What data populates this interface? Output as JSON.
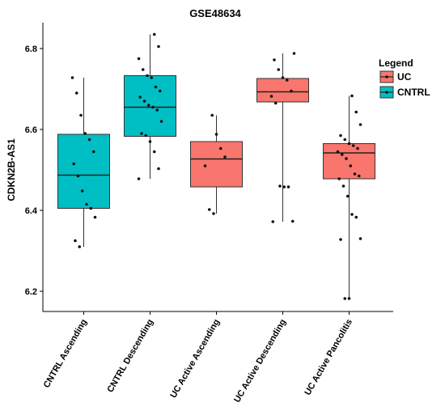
{
  "chart_data": {
    "type": "boxplot",
    "title": "GSE48634",
    "xlabel": "",
    "ylabel": "CDKN2B-AS1",
    "ylim": [
      6.15,
      6.87
    ],
    "yticks": [
      6.2,
      6.4,
      6.6,
      6.8
    ],
    "ytick_labels": [
      "6.2",
      "6.4",
      "6.6",
      "6.8"
    ],
    "categories": [
      "CNTRL Ascending",
      "CNTRL Descending",
      "UC Active Ascending",
      "UC Active Descending",
      "UC Active Pancolitis"
    ],
    "legend": {
      "title": "Legend",
      "position": "right",
      "entries": [
        {
          "name": "UC",
          "color": "#F8766D"
        },
        {
          "name": "CNTRL",
          "color": "#00BFC4"
        }
      ]
    },
    "series": [
      {
        "category": "CNTRL Ascending",
        "group": "CNTRL",
        "box": {
          "whisker_low": 6.31,
          "q1": 6.405,
          "median": 6.487,
          "q3": 6.588,
          "whisker_high": 6.728
        },
        "points": [
          6.728,
          6.69,
          6.635,
          6.59,
          6.575,
          6.545,
          6.515,
          6.485,
          6.448,
          6.415,
          6.405,
          6.383,
          6.325,
          6.31
        ]
      },
      {
        "category": "CNTRL Descending",
        "group": "CNTRL",
        "box": {
          "whisker_low": 6.478,
          "q1": 6.583,
          "median": 6.655,
          "q3": 6.733,
          "whisker_high": 6.835
        },
        "points": [
          6.835,
          6.805,
          6.775,
          6.748,
          6.733,
          6.728,
          6.705,
          6.695,
          6.68,
          6.67,
          6.66,
          6.655,
          6.648,
          6.62,
          6.59,
          6.585,
          6.57,
          6.545,
          6.503,
          6.478
        ]
      },
      {
        "category": "UC Active Ascending",
        "group": "UC",
        "box": {
          "whisker_low": 6.392,
          "q1": 6.458,
          "median": 6.527,
          "q3": 6.57,
          "whisker_high": 6.635
        },
        "points": [
          6.635,
          6.588,
          6.553,
          6.532,
          6.51,
          6.402,
          6.392
        ]
      },
      {
        "category": "UC Active Descending",
        "group": "UC",
        "box": {
          "whisker_low": 6.372,
          "q1": 6.668,
          "median": 6.693,
          "q3": 6.726,
          "whisker_high": 6.788
        },
        "points": [
          6.788,
          6.772,
          6.748,
          6.728,
          6.722,
          6.695,
          6.682,
          6.665,
          6.46,
          6.458,
          6.458,
          6.373,
          6.372
        ]
      },
      {
        "category": "UC Active Pancolitis",
        "group": "UC",
        "box": {
          "whisker_low": 6.182,
          "q1": 6.478,
          "median": 6.542,
          "q3": 6.565,
          "whisker_high": 6.683
        },
        "points": [
          6.683,
          6.643,
          6.612,
          6.585,
          6.575,
          6.565,
          6.56,
          6.553,
          6.545,
          6.538,
          6.528,
          6.51,
          6.49,
          6.485,
          6.478,
          6.46,
          6.435,
          6.39,
          6.383,
          6.33,
          6.328,
          6.182,
          6.182
        ]
      }
    ]
  }
}
